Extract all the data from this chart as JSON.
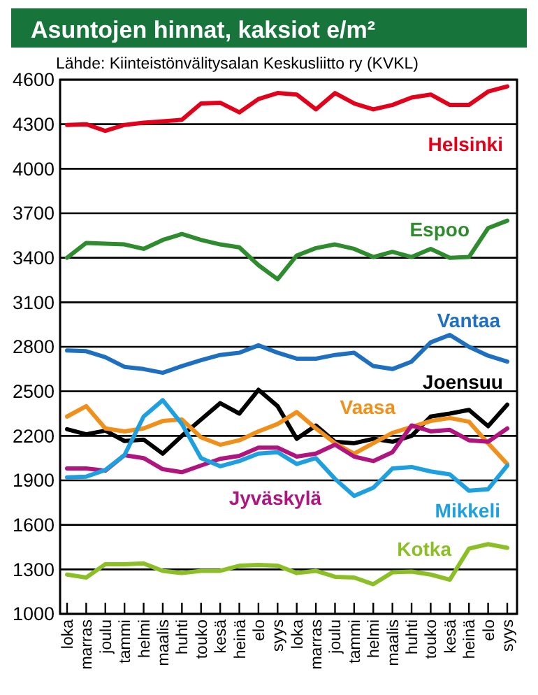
{
  "chart_data": {
    "type": "line",
    "title": "Asuntojen hinnat, kaksiot e/m²",
    "subtitle": "Lähde: Kiinteistönvälitysalan Keskusliitto ry (KVKL)",
    "categories": [
      "loka",
      "marras",
      "joulu",
      "tammi",
      "helmi",
      "maalis",
      "huhti",
      "touko",
      "kesä",
      "heinä",
      "elo",
      "syys",
      "loka",
      "marras",
      "joulu",
      "tammi",
      "helmi",
      "maalis",
      "huhti",
      "touko",
      "kesä",
      "heinä",
      "elo",
      "syys"
    ],
    "ylim": [
      1000,
      4600
    ],
    "yticks": [
      1000,
      1300,
      1600,
      1900,
      2200,
      2500,
      2800,
      3100,
      3400,
      3700,
      4000,
      4300,
      4600
    ],
    "grid": "y",
    "legend": false,
    "line_style": "solid",
    "marker": "none",
    "series": [
      {
        "name": "Helsinki",
        "color": "#e3001b",
        "values": [
          4295,
          4300,
          4255,
          4295,
          4310,
          4320,
          4330,
          4440,
          4445,
          4380,
          4470,
          4510,
          4500,
          4400,
          4510,
          4440,
          4400,
          4430,
          4480,
          4500,
          4430,
          4430,
          4520,
          4555
        ]
      },
      {
        "name": "Espoo",
        "color": "#2e8b2e",
        "values": [
          3400,
          3500,
          3495,
          3490,
          3460,
          3520,
          3560,
          3520,
          3490,
          3470,
          3350,
          3255,
          3415,
          3465,
          3490,
          3460,
          3405,
          3440,
          3405,
          3460,
          3400,
          3405,
          3600,
          3650
        ]
      },
      {
        "name": "Vantaa",
        "color": "#1f6fc0",
        "values": [
          2775,
          2770,
          2730,
          2665,
          2650,
          2625,
          2670,
          2710,
          2745,
          2760,
          2810,
          2760,
          2720,
          2720,
          2745,
          2760,
          2670,
          2650,
          2700,
          2830,
          2880,
          2800,
          2740,
          2700
        ]
      },
      {
        "name": "Joensuu",
        "color": "#000000",
        "values": [
          2245,
          2210,
          2235,
          2165,
          2175,
          2080,
          2200,
          2310,
          2420,
          2350,
          2510,
          2400,
          2180,
          2270,
          2160,
          2150,
          2180,
          2160,
          2200,
          2330,
          2350,
          2375,
          2265,
          2410
        ]
      },
      {
        "name": "Vaasa",
        "color": "#f0901a",
        "values": [
          2330,
          2400,
          2250,
          2230,
          2250,
          2300,
          2310,
          2190,
          2140,
          2170,
          2230,
          2280,
          2360,
          2250,
          2150,
          2080,
          2150,
          2220,
          2260,
          2300,
          2320,
          2295,
          2150,
          2010
        ]
      },
      {
        "name": "Jyväskylä",
        "color": "#b0157f",
        "values": [
          1980,
          1980,
          1965,
          2070,
          2050,
          1975,
          1955,
          2000,
          2045,
          2065,
          2120,
          2120,
          2060,
          2080,
          2140,
          2060,
          2030,
          2090,
          2270,
          2230,
          2240,
          2170,
          2160,
          2250
        ]
      },
      {
        "name": "Mikkeli",
        "color": "#1ea0e0",
        "values": [
          1920,
          1925,
          1970,
          2070,
          2330,
          2440,
          2280,
          2050,
          1995,
          2030,
          2080,
          2090,
          2010,
          2050,
          1910,
          1795,
          1850,
          1980,
          1990,
          1960,
          1940,
          1830,
          1840,
          2000
        ]
      },
      {
        "name": "Kotka",
        "color": "#8cbf26",
        "values": [
          1265,
          1245,
          1335,
          1335,
          1340,
          1290,
          1275,
          1290,
          1290,
          1325,
          1330,
          1325,
          1275,
          1290,
          1250,
          1245,
          1200,
          1280,
          1285,
          1265,
          1230,
          1440,
          1470,
          1445
        ]
      }
    ]
  }
}
